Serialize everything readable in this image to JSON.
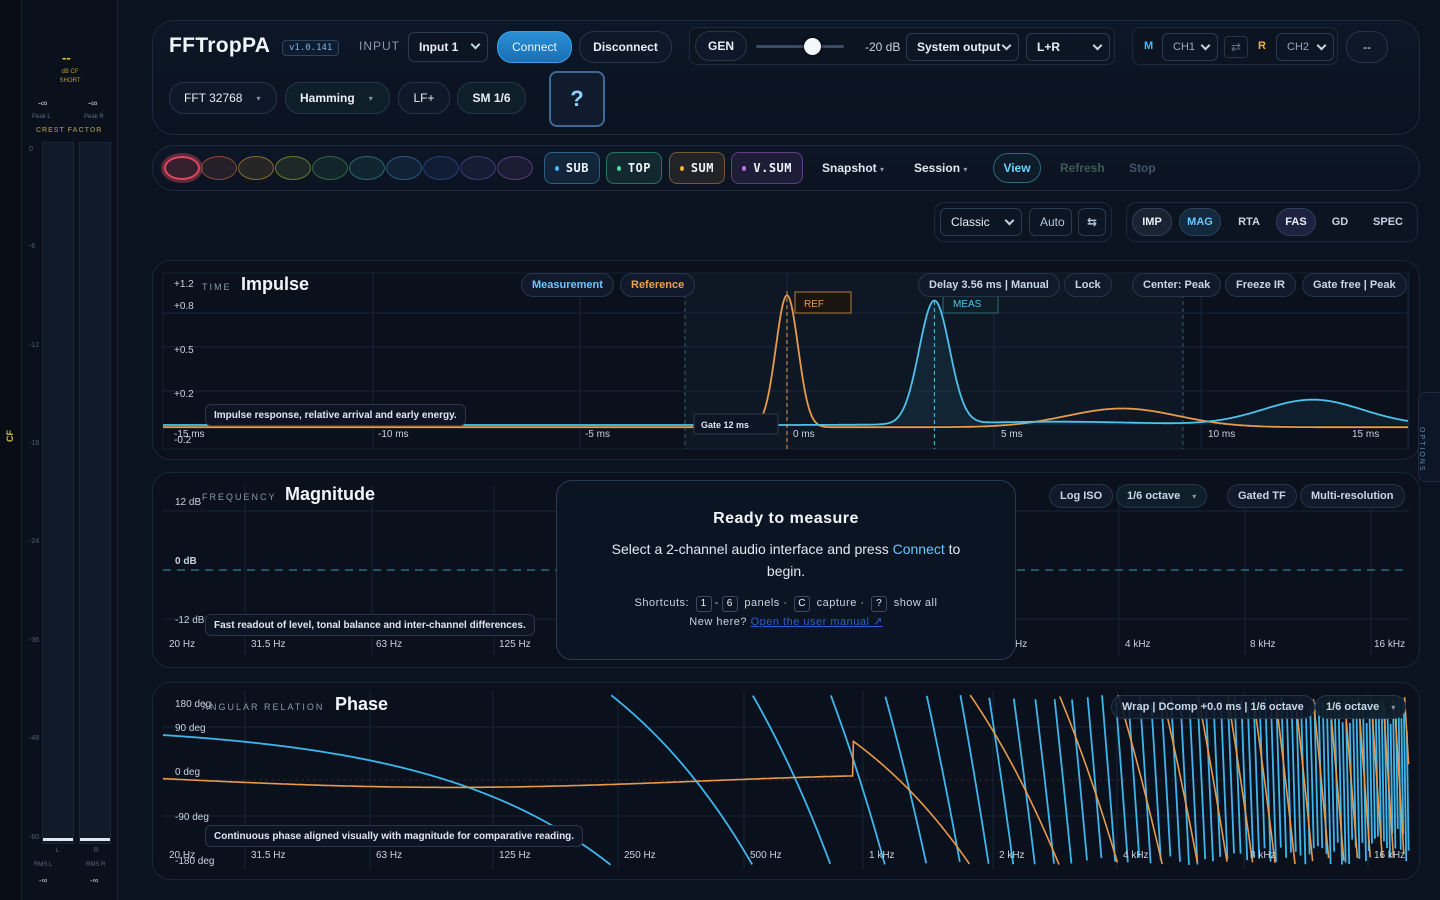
{
  "meter": {
    "cf_label": "CF",
    "short_value": "--",
    "short_unit": "dB CF SHORT",
    "peak_l_value": "-∞",
    "peak_r_value": "-∞",
    "peak_l_label": "Peak L",
    "peak_r_label": "Peak R",
    "crest_factor_label": "CREST FACTOR",
    "scale": [
      "0",
      "-6",
      "-12",
      "-18",
      "-24",
      "-36",
      "-48",
      "-60"
    ],
    "ch_l": "L",
    "ch_r": "R",
    "rms_l_label": "RMS L",
    "rms_r_label": "RMS R",
    "rms_l_value": "-∞",
    "rms_r_value": "-∞"
  },
  "header": {
    "brand": "FFTropPA",
    "version": "v1.0.141",
    "input_label": "INPUT",
    "input_select": "Input 1",
    "connect": "Connect",
    "disconnect": "Disconnect",
    "gen": "GEN",
    "gen_level": "-20 dB",
    "output_select": "System output",
    "channel_select": "L+R",
    "m_label": "M",
    "m_channel": "CH1",
    "r_label": "R",
    "r_channel": "CH2",
    "extra_button": "--",
    "fft_select": "FFT 32768",
    "window_select": "Hamming",
    "lf_button": "LF+",
    "smoothing": "SM 1/6",
    "help": "?"
  },
  "snapbar": {
    "snapshot_colors": [
      "#e04a5e",
      "#8a4a3a",
      "#8a6a30",
      "#6a7a30",
      "#2f6a48",
      "#2a6a6a",
      "#2a5a80",
      "#2a3f7a",
      "#3e3a7a",
      "#5a3a7a"
    ],
    "tags": [
      {
        "label": "SUB",
        "color": "#4ab8ff"
      },
      {
        "label": "TOP",
        "color": "#4ae0a0"
      },
      {
        "label": "SUM",
        "color": "#f0b040"
      },
      {
        "label": "V.SUM",
        "color": "#c070f0"
      }
    ],
    "snapshot_menu": "Snapshot",
    "session_menu": "Session",
    "view": "View",
    "refresh": "Refresh",
    "stop": "Stop"
  },
  "viewbar": {
    "layout_select": "Classic",
    "auto": "Auto",
    "swap_icon": "swap-icon",
    "tabs": [
      "IMP",
      "MAG",
      "RTA",
      "FAS",
      "GD",
      "SPEC"
    ],
    "active_tabs": [
      "IMP",
      "MAG",
      "FAS"
    ]
  },
  "impulse": {
    "kicker": "TIME",
    "title": "Impulse",
    "measurement_chip": "Measurement",
    "reference_chip": "Reference",
    "delay_chip": "Delay 3.56 ms | Manual",
    "lock_chip": "Lock",
    "center_chip": "Center: Peak",
    "freeze_chip": "Freeze IR",
    "gate_chip": "Gate free | Peak",
    "hint": "Impulse response, relative arrival and early energy.",
    "gate_label": "Gate 12 ms",
    "ref_label": "REF",
    "meas_label": "MEAS",
    "y_ticks": [
      "+1.2",
      "+0.8",
      "+0.5",
      "+0.2",
      "-0.2"
    ],
    "x_ticks": [
      "-15 ms",
      "-10 ms",
      "-5 ms",
      "0 ms",
      "5 ms",
      "10 ms",
      "15 ms"
    ]
  },
  "magnitude": {
    "kicker": "FREQUENCY",
    "title": "Magnitude",
    "logiso_chip": "Log ISO",
    "octave_chip": "1/6 octave",
    "gatedtf_chip": "Gated TF",
    "multires_chip": "Multi-resolution",
    "hint": "Fast readout of level, tonal balance and inter-channel differences.",
    "y_ticks": [
      "12 dB",
      "0 dB",
      "-12 dB"
    ],
    "x_ticks": [
      "20 Hz",
      "31.5 Hz",
      "63 Hz",
      "125 Hz",
      "Hz",
      "4 kHz",
      "8 kHz",
      "16 kHz"
    ]
  },
  "phase": {
    "kicker": "ANGULAR RELATION",
    "title": "Phase",
    "wrap_chip": "Wrap | DComp +0.0 ms | 1/6 octave",
    "octave_chip": "1/6 octave",
    "hint": "Continuous phase aligned visually with magnitude for comparative reading.",
    "y_ticks": [
      "180 deg",
      "90 deg",
      "0 deg",
      "-90 deg",
      "-180 deg"
    ],
    "x_ticks": [
      "20 Hz",
      "31.5 Hz",
      "63 Hz",
      "125 Hz",
      "250 Hz",
      "500 Hz",
      "1 kHz",
      "2 kHz",
      "4 kHz",
      "8 kHz",
      "16 kHz"
    ]
  },
  "ready": {
    "title": "Ready to measure",
    "body_pre": "Select a 2-channel audio interface and press ",
    "body_hl": "Connect",
    "body_post": " to begin.",
    "shortcuts_label": "Shortcuts:",
    "key1": "1",
    "key6": "6",
    "panels": "panels",
    "keyc": "C",
    "capture": "capture",
    "keyq": "?",
    "show_all": "show all",
    "new_here": "New here?",
    "manual_link": "Open the user manual ↗"
  },
  "options_label": "OPTIONS"
}
